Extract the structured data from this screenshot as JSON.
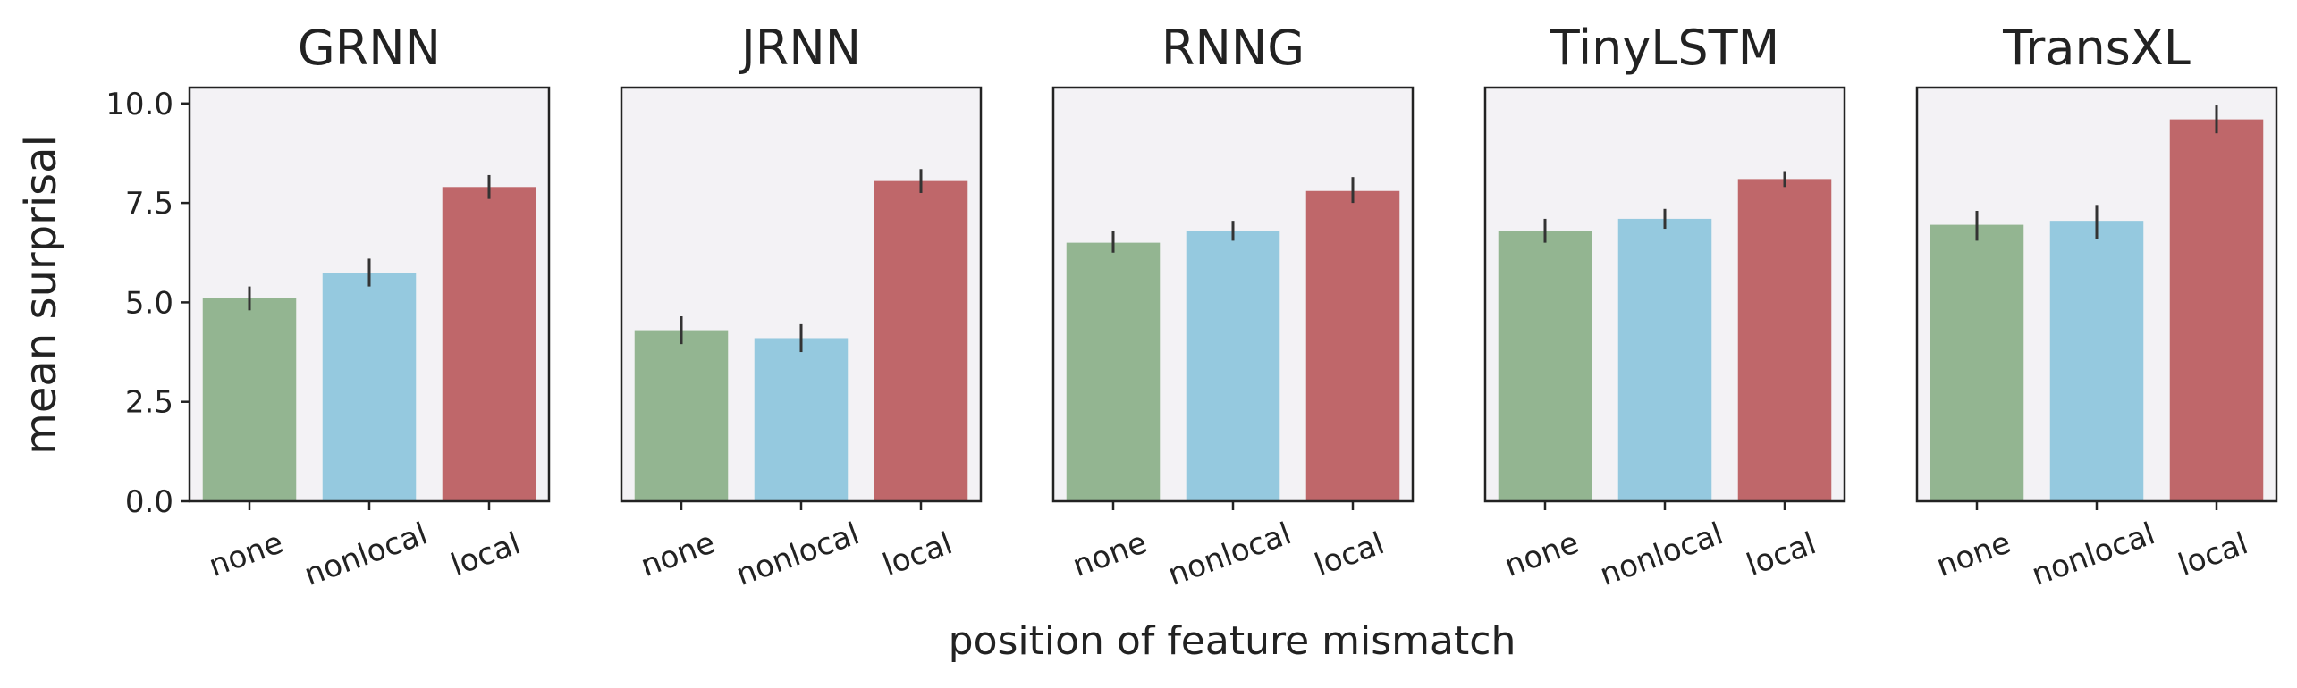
{
  "chart_data": {
    "type": "bar",
    "xlabel": "position of feature mismatch",
    "ylabel": "mean surprisal",
    "ylim": [
      0,
      10.4
    ],
    "yticks": [
      "0.0",
      "2.5",
      "5.0",
      "7.5",
      "10.0"
    ],
    "categories": [
      "none",
      "nonlocal",
      "local"
    ],
    "colors": {
      "none": "#93b591",
      "nonlocal": "#95c9df",
      "local": "#bf676a"
    },
    "grid": false,
    "panels": [
      {
        "title": "GRNN",
        "values": [
          5.1,
          5.75,
          7.9
        ],
        "errors": [
          [
            4.8,
            5.4
          ],
          [
            5.4,
            6.1
          ],
          [
            7.6,
            8.2
          ]
        ]
      },
      {
        "title": "JRNN",
        "values": [
          4.3,
          4.1,
          8.05
        ],
        "errors": [
          [
            3.95,
            4.65
          ],
          [
            3.75,
            4.45
          ],
          [
            7.75,
            8.35
          ]
        ]
      },
      {
        "title": "RNNG",
        "values": [
          6.5,
          6.8,
          7.8
        ],
        "errors": [
          [
            6.25,
            6.8
          ],
          [
            6.55,
            7.05
          ],
          [
            7.5,
            8.15
          ]
        ]
      },
      {
        "title": "TinyLSTM",
        "values": [
          6.8,
          7.1,
          8.1
        ],
        "errors": [
          [
            6.5,
            7.1
          ],
          [
            6.85,
            7.35
          ],
          [
            7.9,
            8.3
          ]
        ]
      },
      {
        "title": "TransXL",
        "values": [
          6.95,
          7.05,
          9.6
        ],
        "errors": [
          [
            6.55,
            7.3
          ],
          [
            6.6,
            7.45
          ],
          [
            9.25,
            9.95
          ]
        ]
      }
    ]
  }
}
